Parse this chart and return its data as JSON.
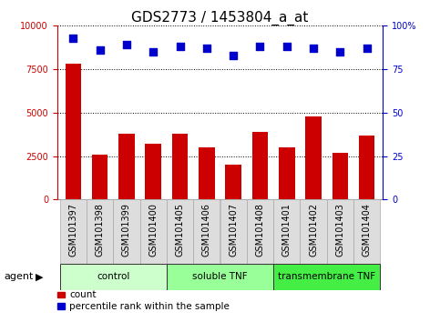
{
  "title": "GDS2773 / 1453804_a_at",
  "samples": [
    "GSM101397",
    "GSM101398",
    "GSM101399",
    "GSM101400",
    "GSM101405",
    "GSM101406",
    "GSM101407",
    "GSM101408",
    "GSM101401",
    "GSM101402",
    "GSM101403",
    "GSM101404"
  ],
  "counts": [
    7800,
    2600,
    3800,
    3200,
    3800,
    3000,
    2000,
    3900,
    3000,
    4800,
    2700,
    3700
  ],
  "percentiles": [
    93,
    86,
    89,
    85,
    88,
    87,
    83,
    88,
    88,
    87,
    85,
    87
  ],
  "groups": [
    {
      "label": "control",
      "start": 0,
      "end": 4,
      "color": "#ccffcc"
    },
    {
      "label": "soluble TNF",
      "start": 4,
      "end": 8,
      "color": "#99ff99"
    },
    {
      "label": "transmembrane TNF",
      "start": 8,
      "end": 12,
      "color": "#44ee44"
    }
  ],
  "ylim_left": [
    0,
    10000
  ],
  "ylim_right": [
    0,
    100
  ],
  "yticks_left": [
    0,
    2500,
    5000,
    7500,
    10000
  ],
  "yticks_right": [
    0,
    25,
    50,
    75,
    100
  ],
  "yticklabels_left": [
    "0",
    "2500",
    "5000",
    "7500",
    "10000"
  ],
  "yticklabels_right": [
    "0",
    "25",
    "50",
    "75",
    "100%"
  ],
  "bar_color": "#cc0000",
  "dot_color": "#0000cc",
  "grid_color": "#000000",
  "xtick_bg": "#dddddd",
  "bg_color": "#ffffff",
  "tick_label_color_left": "#cc0000",
  "tick_label_color_right": "#0000cc",
  "xlabel_agent": "agent",
  "legend_count": "count",
  "legend_percentile": "percentile rank within the sample",
  "title_fontsize": 11,
  "tick_fontsize": 7,
  "bar_width": 0.6,
  "dot_size": 30
}
